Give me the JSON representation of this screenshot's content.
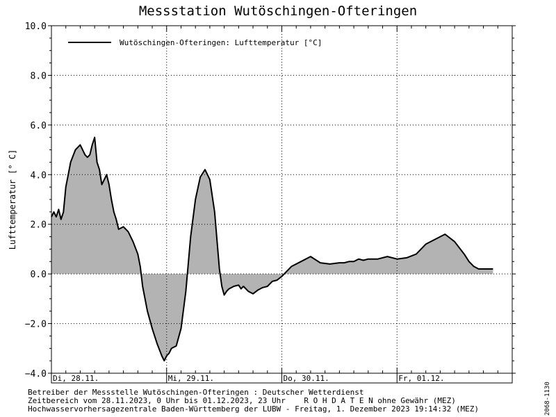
{
  "header": {
    "title": "Messstation Wutöschingen-Ofteringen"
  },
  "footer": {
    "line1": "Betreiber der Messstelle Wutöschingen-Ofteringen : Deutscher Wetterdienst",
    "line2": "Zeitbereich vom 28.11.2023, 0 Uhr bis 01.12.2023, 23 Uhr    R O H D A T E N ohne Gewähr (MEZ)",
    "line3": "Hochwasservorhersagezentrale Baden-Württemberg der LUBW - Freitag, 1. Dezember 2023 19:14:32 (MEZ)",
    "side_id": "2068-1130"
  },
  "colors": {
    "fill": "#b3b3b3",
    "line": "#000000",
    "grid": "#000000"
  },
  "chart_data": {
    "type": "area",
    "ylabel": "Lufttemperatur [° C]",
    "ylim": [
      -4.0,
      10.0
    ],
    "yticks": [
      -4.0,
      -2.0,
      0.0,
      2.0,
      4.0,
      6.0,
      8.0,
      10.0
    ],
    "ytick_labels": [
      "−4.0",
      "−2.0",
      "0.0",
      "2.0",
      "4.0",
      "6.0",
      "8.0",
      "10.0"
    ],
    "xlim_hours": [
      0,
      96
    ],
    "day_labels": [
      "Di, 28.11.",
      "Mi, 29.11.",
      "Do, 30.11.",
      "Fr, 01.12."
    ],
    "grid": true,
    "legend_position": "top-left",
    "series": [
      {
        "name": "Wutöschingen-Ofteringen: Lufttemperatur  [°C]",
        "x_hours": [
          0,
          0.5,
          1,
          1.5,
          2,
          2.5,
          3,
          3.5,
          4,
          5,
          6,
          7,
          7.5,
          8,
          8.5,
          9,
          9.5,
          10,
          10.5,
          11,
          11.5,
          12,
          12.5,
          13,
          13.5,
          14,
          15,
          16,
          17,
          18,
          18.5,
          19,
          20,
          21,
          22,
          23,
          23.5,
          24,
          24.5,
          25,
          26,
          27,
          28,
          29,
          30,
          31,
          32,
          33,
          34,
          35,
          35.5,
          36,
          36.5,
          37,
          38,
          39,
          39.5,
          40,
          41,
          42,
          43,
          44,
          45,
          46,
          47,
          48,
          50,
          52,
          54,
          56,
          58,
          60,
          61,
          62,
          63,
          64,
          65,
          66,
          67,
          68,
          70,
          72,
          74,
          76,
          78,
          80,
          82,
          84,
          86,
          87,
          88,
          89,
          90,
          91,
          91.5,
          92
        ],
        "values": [
          2.3,
          2.5,
          2.3,
          2.6,
          2.2,
          2.5,
          3.5,
          4.0,
          4.5,
          5.0,
          5.2,
          4.8,
          4.7,
          4.8,
          5.2,
          5.5,
          4.5,
          4.2,
          3.6,
          3.8,
          4.0,
          3.6,
          3.0,
          2.5,
          2.2,
          1.8,
          1.9,
          1.7,
          1.3,
          0.8,
          0.3,
          -0.5,
          -1.5,
          -2.2,
          -2.8,
          -3.3,
          -3.5,
          -3.3,
          -3.2,
          -3.0,
          -2.9,
          -2.2,
          -0.7,
          1.5,
          3.0,
          3.9,
          4.2,
          3.8,
          2.5,
          0.2,
          -0.5,
          -0.85,
          -0.7,
          -0.6,
          -0.5,
          -0.45,
          -0.6,
          -0.5,
          -0.7,
          -0.8,
          -0.65,
          -0.55,
          -0.5,
          -0.3,
          -0.25,
          -0.1,
          0.3,
          0.5,
          0.7,
          0.45,
          0.4,
          0.45,
          0.45,
          0.5,
          0.5,
          0.6,
          0.55,
          0.6,
          0.6,
          0.6,
          0.7,
          0.6,
          0.65,
          0.8,
          1.2,
          1.4,
          1.6,
          1.3,
          0.8,
          0.5,
          0.3,
          0.2,
          0.2,
          0.2,
          0.2,
          0.2
        ]
      }
    ]
  }
}
